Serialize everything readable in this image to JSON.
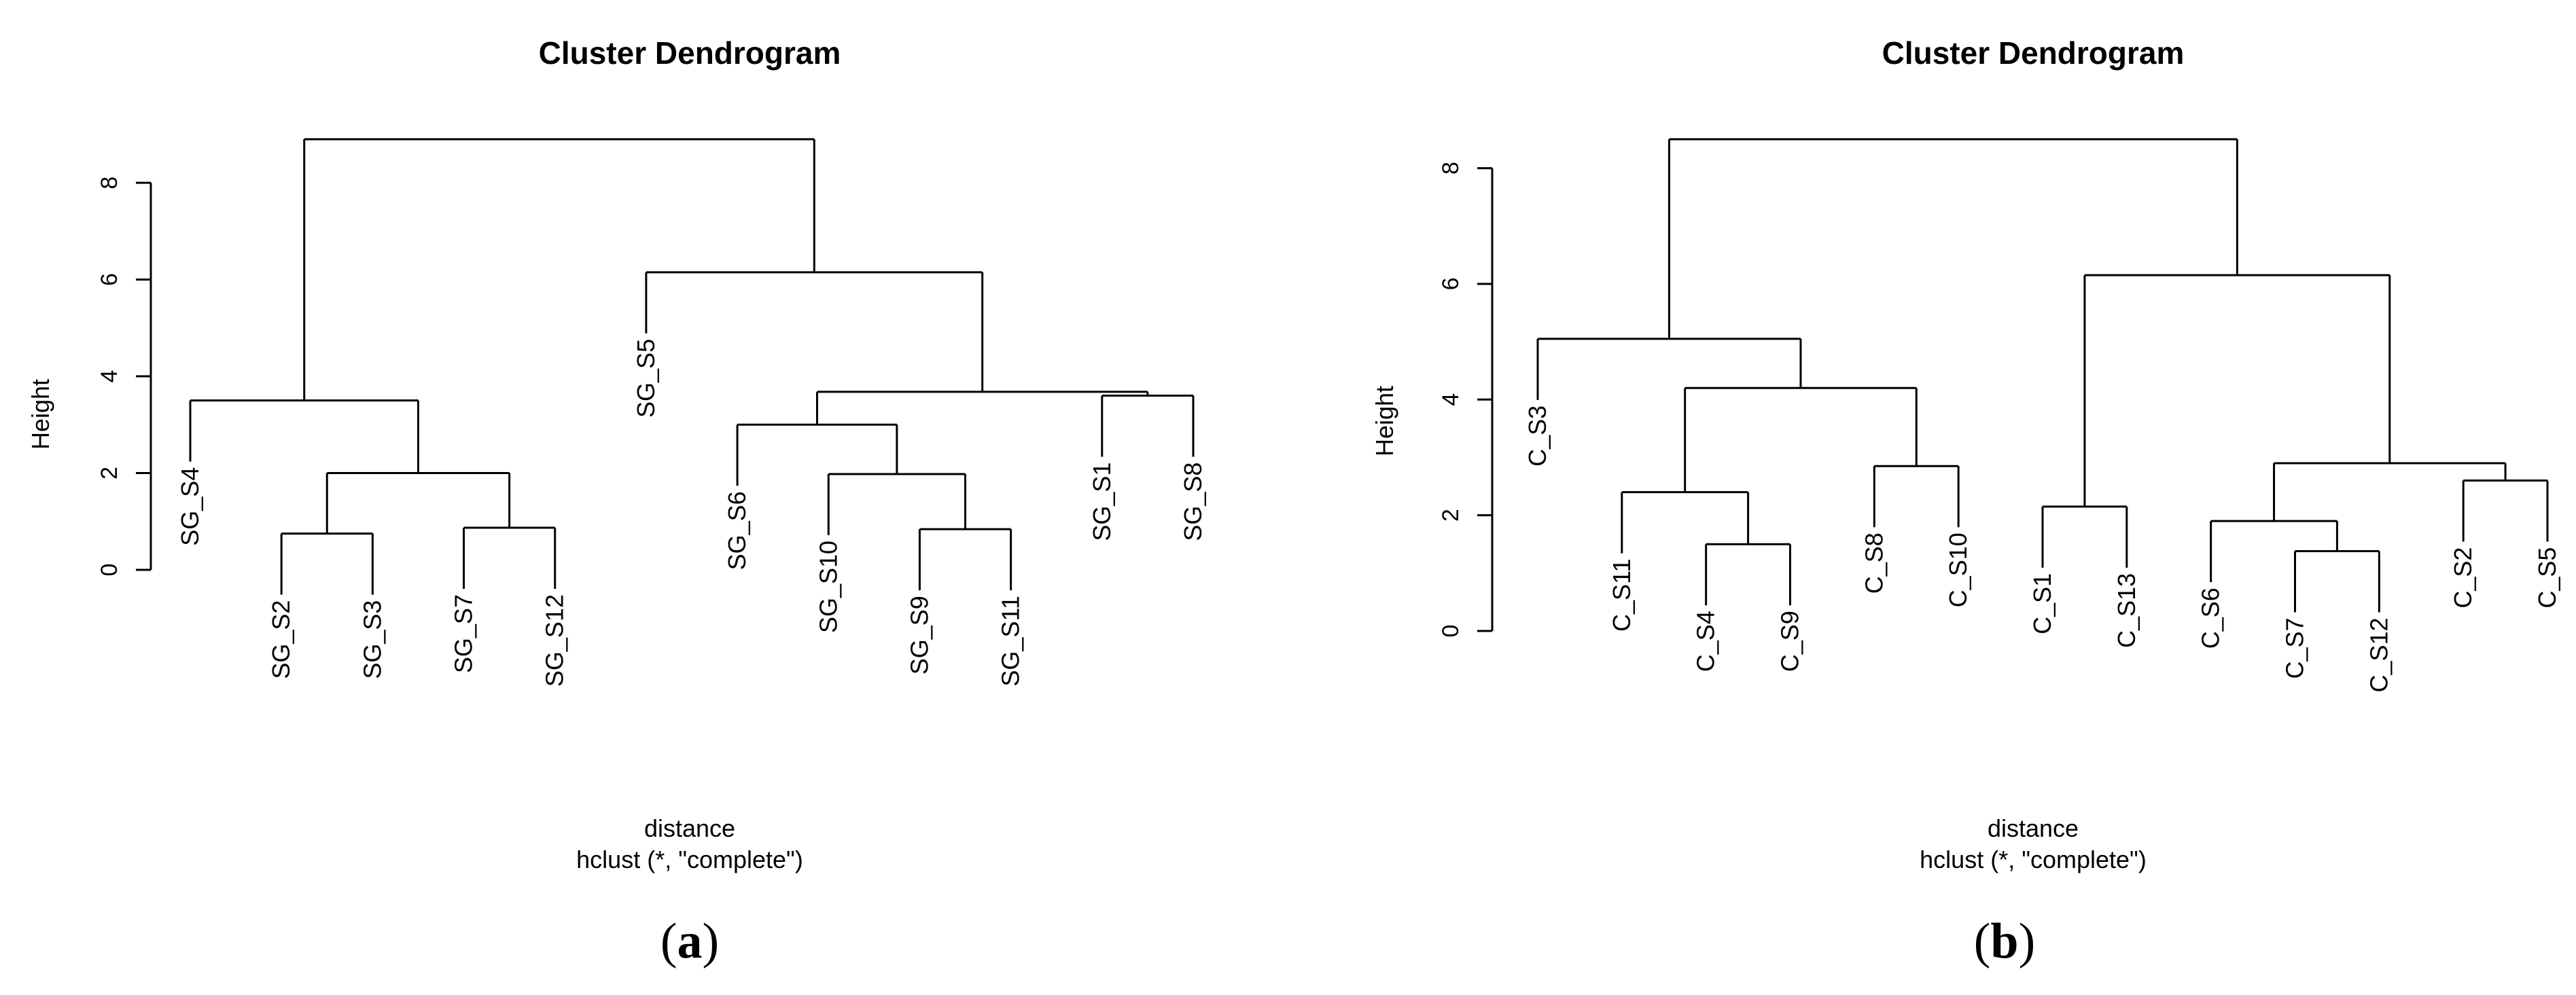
{
  "chart_data": [
    {
      "type": "dendrogram",
      "panel": "a",
      "title": "Cluster Dendrogram",
      "ylabel": "Height",
      "xlabel": "distance",
      "sublabel": "hclust (*, \"complete\")",
      "ylim": [
        0,
        8.9
      ],
      "yticks": [
        0,
        2,
        4,
        6,
        8
      ],
      "leaves": [
        "SG_S4",
        "SG_S2",
        "SG_S3",
        "SG_S7",
        "SG_S12",
        "SG_S5",
        "SG_S6",
        "SG_S10",
        "SG_S9",
        "SG_S11",
        "SG_S1",
        "SG_S8"
      ],
      "merges": [
        {
          "left": "SG_S2",
          "right": "SG_S3",
          "height": 0.75
        },
        {
          "left": "SG_S7",
          "right": "SG_S12",
          "height": 0.87
        },
        {
          "left": "SG_S9",
          "right": "SG_S11",
          "height": 0.84
        },
        {
          "left": "SG_S10",
          "right": 3,
          "height": 1.98
        },
        {
          "left": "SG_S6",
          "right": 4,
          "height": 3.0
        },
        {
          "left": "SG_S1",
          "right": "SG_S8",
          "height": 3.6
        },
        {
          "left": 5,
          "right": 6,
          "height": 3.68
        },
        {
          "left": "SG_S5",
          "right": 7,
          "height": 6.15
        },
        {
          "left": 1,
          "right": 2,
          "height": 2.0
        },
        {
          "left": "SG_S4",
          "right": 9,
          "height": 3.5
        },
        {
          "left": 10,
          "right": 8,
          "height": 8.9
        }
      ]
    },
    {
      "type": "dendrogram",
      "panel": "b",
      "title": "Cluster Dendrogram",
      "ylabel": "Height",
      "xlabel": "distance",
      "sublabel": "hclust (*, \"complete\")",
      "ylim": [
        0,
        8.5
      ],
      "yticks": [
        0,
        2,
        4,
        6,
        8
      ],
      "leaves": [
        "C_S3",
        "C_S11",
        "C_S4",
        "C_S9",
        "C_S8",
        "C_S10",
        "C_S1",
        "C_S13",
        "C_S6",
        "C_S7",
        "C_S12",
        "C_S2",
        "C_S5"
      ],
      "merges": [
        {
          "left": "C_S4",
          "right": "C_S9",
          "height": 1.5
        },
        {
          "left": "C_S11",
          "right": 1,
          "height": 2.4
        },
        {
          "left": "C_S8",
          "right": "C_S10",
          "height": 2.85
        },
        {
          "left": 2,
          "right": 3,
          "height": 4.2
        },
        {
          "left": "C_S3",
          "right": 4,
          "height": 5.05
        },
        {
          "left": "C_S7",
          "right": "C_S12",
          "height": 1.38
        },
        {
          "left": "C_S6",
          "right": 6,
          "height": 1.9
        },
        {
          "left": "C_S2",
          "right": "C_S5",
          "height": 2.6
        },
        {
          "left": 7,
          "right": 8,
          "height": 2.9
        },
        {
          "left": "C_S1",
          "right": "C_S13",
          "height": 2.15
        },
        {
          "left": 10,
          "right": 9,
          "height": 6.15
        },
        {
          "left": 5,
          "right": 11,
          "height": 8.5
        }
      ]
    }
  ]
}
